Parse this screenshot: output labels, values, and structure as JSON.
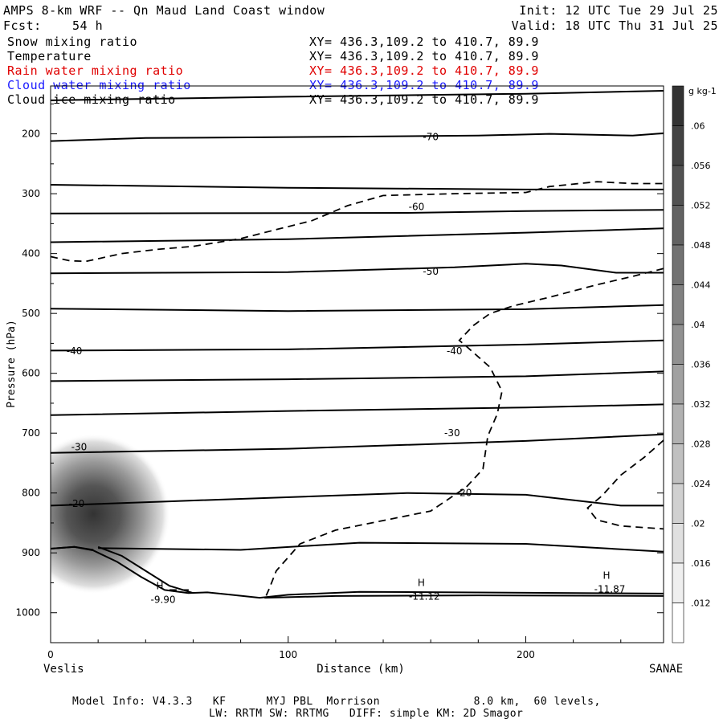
{
  "header": {
    "title_left": "AMPS 8-km WRF -- Qn Maud Land Coast window",
    "fcst_label": "Fcst:",
    "fcst_value": "54 h",
    "init": "Init: 12 UTC Tue 29 Jul 25",
    "valid": "Valid: 18 UTC Thu 31 Jul 25"
  },
  "legend": [
    {
      "name": "Snow mixing ratio",
      "xy": "XY= 436.3,109.2 to 410.7, 89.9",
      "color": "#000000"
    },
    {
      "name": "Temperature",
      "xy": "XY= 436.3,109.2 to 410.7, 89.9",
      "color": "#000000"
    },
    {
      "name": "Rain water mixing ratio",
      "xy": "XY= 436.3,109.2 to 410.7, 89.9",
      "color": "#e00000"
    },
    {
      "name": "Cloud water mixing ratio",
      "xy": "XY= 436.3,109.2 to 410.7, 89.9",
      "color": "#1a1aff"
    },
    {
      "name": "Cloud ice mixing ratio",
      "xy": "XY= 436.3,109.2 to 410.7, 89.9",
      "color": "#000000"
    }
  ],
  "footer": {
    "line1": "Model Info: V4.3.3   KF      MYJ PBL  Morrison              8.0 km,  60 levels,",
    "line2": "LW: RRTM SW: RRTMG   DIFF: simple KM: 2D Smagor"
  },
  "chart_data": {
    "type": "cross-section",
    "xlabel": "Distance (km)",
    "ylabel": "Pressure (hPa)",
    "x_start_label": "Veslis",
    "x_end_label": "SANAE",
    "xlim": [
      0,
      258
    ],
    "ylim": [
      1050,
      120
    ],
    "xticks": [
      0,
      100,
      200
    ],
    "yticks": [
      200,
      300,
      400,
      500,
      600,
      700,
      800,
      900,
      1000
    ],
    "colorbar_unit": "g kg-1",
    "colorbar_ticks": [
      ".012",
      ".016",
      ".02",
      ".024",
      ".028",
      ".032",
      ".036",
      ".04",
      ".044",
      ".048",
      ".052",
      ".056",
      ".06"
    ],
    "temperature_labels": [
      {
        "text": "-70",
        "x": 160,
        "p": 205
      },
      {
        "text": "-60",
        "x": 154,
        "p": 322
      },
      {
        "text": "-50",
        "x": 160,
        "p": 430
      },
      {
        "text": "-40",
        "x": 10,
        "p": 563
      },
      {
        "text": "-40",
        "x": 170,
        "p": 563
      },
      {
        "text": "-30",
        "x": 12,
        "p": 723
      },
      {
        "text": "-30",
        "x": 169,
        "p": 700
      },
      {
        "text": "-20",
        "x": 11,
        "p": 818
      },
      {
        "text": "-20",
        "x": 174,
        "p": 800
      }
    ],
    "highs": [
      {
        "label": "H",
        "value": "-9.90",
        "x": 46,
        "p": 966
      },
      {
        "label": "H",
        "value": "-11.12",
        "x": 156,
        "p": 961
      },
      {
        "label": "H",
        "value": "-11.87",
        "x": 234,
        "p": 949
      }
    ],
    "snow_max": {
      "x": 18,
      "p": 835,
      "value": 0.062
    }
  }
}
